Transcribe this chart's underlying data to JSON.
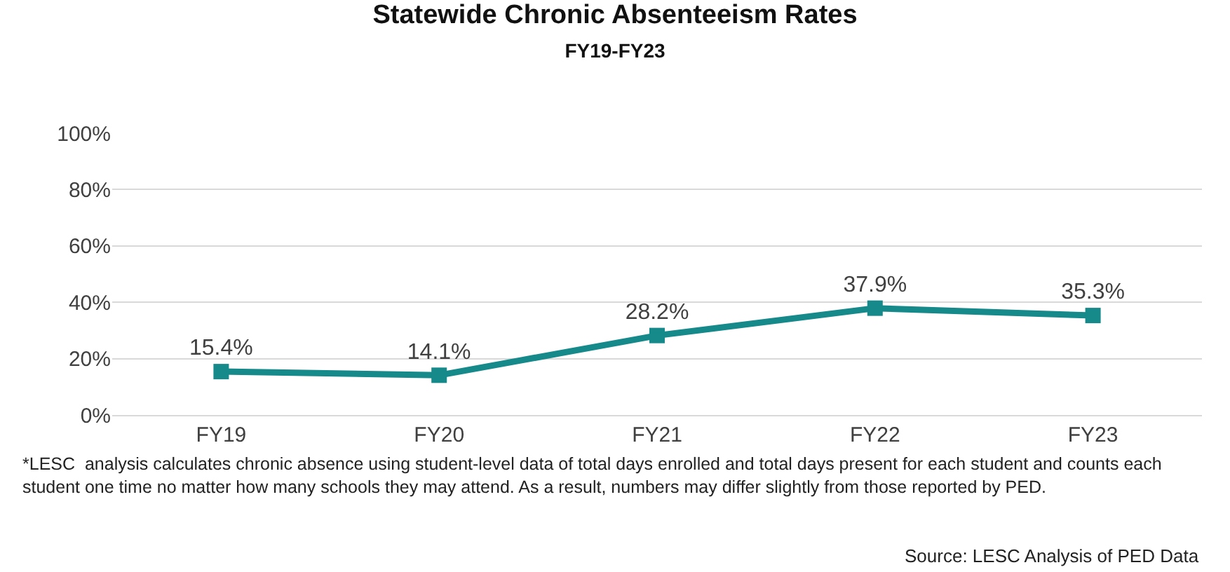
{
  "chart_data": {
    "type": "line",
    "title": "Statewide Chronic Absenteeism Rates",
    "subtitle": "FY19-FY23",
    "categories": [
      "FY19",
      "FY20",
      "FY21",
      "FY22",
      "FY23"
    ],
    "series": [
      {
        "color": "#16898a",
        "values": [
          15.4,
          14.1,
          28.2,
          37.9,
          35.3
        ],
        "value_labels": [
          "15.4%",
          "14.1%",
          "28.2%",
          "37.9%",
          "35.3%"
        ]
      }
    ],
    "ylim": [
      0,
      100
    ],
    "yticks": [
      {
        "value": 0,
        "label": "0%"
      },
      {
        "value": 20,
        "label": "20%"
      },
      {
        "value": 40,
        "label": "40%"
      },
      {
        "value": 60,
        "label": "60%"
      },
      {
        "value": 80,
        "label": "80%"
      },
      {
        "value": 100,
        "label": "100%"
      }
    ],
    "grid": "y",
    "marker": "square",
    "line_style": "solid",
    "annotations": [
      "*LESC  analysis calculates chronic absence using student-level data of total days enrolled and total days present for each student and counts each student one time no matter how many schools they may attend. As a result, numbers may differ slightly from those reported by PED.",
      "Source: LESC Analysis of PED Data"
    ]
  }
}
